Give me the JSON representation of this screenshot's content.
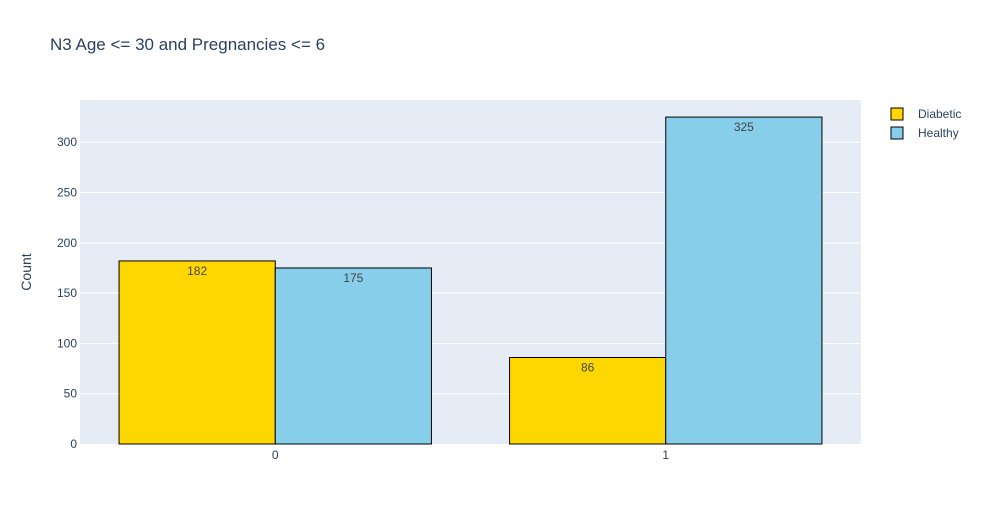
{
  "chart_data": {
    "type": "bar",
    "title": "N3 Age <= 30 and Pregnancies <= 6",
    "xlabel": "",
    "ylabel": "Count",
    "categories": [
      "0",
      "1"
    ],
    "series": [
      {
        "name": "Diabetic",
        "values": [
          182,
          86
        ],
        "color": "#FFD700"
      },
      {
        "name": "Healthy",
        "values": [
          175,
          325
        ],
        "color": "#87CEEB"
      }
    ],
    "ylim": [
      0,
      342
    ],
    "yticks": [
      0,
      50,
      100,
      150,
      200,
      250,
      300
    ],
    "grid": true,
    "legend": "top-right",
    "colors": {
      "plot_bg": "#E5ECF6",
      "grid": "#ffffff",
      "text": "#2a3f5f",
      "bar_outline": "#000000"
    }
  }
}
